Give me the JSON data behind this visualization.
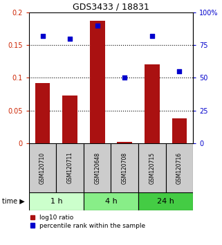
{
  "title": "GDS3433 / 18831",
  "samples": [
    "GSM120710",
    "GSM120711",
    "GSM120648",
    "GSM120708",
    "GSM120715",
    "GSM120716"
  ],
  "log10_ratio": [
    0.092,
    0.073,
    0.187,
    0.002,
    0.121,
    0.038
  ],
  "percentile_rank": [
    82,
    80,
    90,
    50,
    82,
    55
  ],
  "bar_color": "#aa1111",
  "dot_color": "#0000cc",
  "ylim_left": [
    0,
    0.2
  ],
  "ylim_right": [
    0,
    100
  ],
  "yticks_left": [
    0,
    0.05,
    0.1,
    0.15,
    0.2
  ],
  "ytick_labels_left": [
    "0",
    "0.05",
    "0.1",
    "0.15",
    "0.2"
  ],
  "yticks_right": [
    0,
    25,
    50,
    75,
    100
  ],
  "ytick_labels_right": [
    "0",
    "25",
    "50",
    "75",
    "100%"
  ],
  "groups": [
    {
      "label": "1 h",
      "indices": [
        0,
        1
      ],
      "color": "#ccffcc"
    },
    {
      "label": "4 h",
      "indices": [
        2,
        3
      ],
      "color": "#88ee88"
    },
    {
      "label": "24 h",
      "indices": [
        4,
        5
      ],
      "color": "#44cc44"
    }
  ],
  "legend_bar_label": "log10 ratio",
  "legend_dot_label": "percentile rank within the sample",
  "background_color": "#ffffff",
  "label_color_left": "#cc2200",
  "label_color_right": "#0000cc",
  "bar_width": 0.55,
  "sample_box_color": "#cccccc",
  "title_fontsize": 9,
  "tick_fontsize": 7,
  "sample_fontsize": 5.5,
  "group_fontsize": 8,
  "legend_fontsize": 6.5
}
